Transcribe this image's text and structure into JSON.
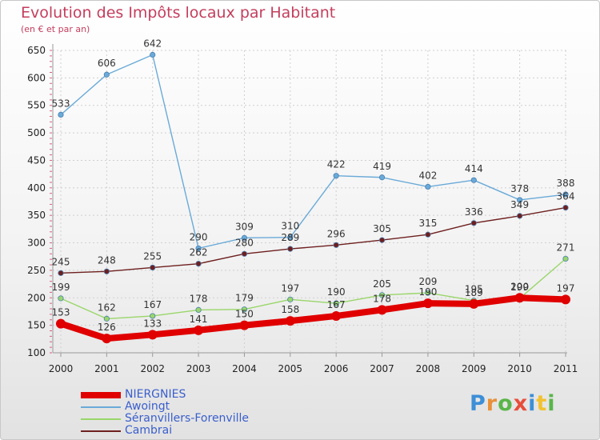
{
  "title": "Evolution des Impôts locaux par Habitant",
  "subtitle": "(en € et par an)",
  "logo": {
    "text": "Proxiti",
    "letter_colors": [
      "#3d8fd6",
      "#e8913a",
      "#5ab54a",
      "#e84d3a",
      "#3d8fd6",
      "#f2c230",
      "#5ab54a"
    ]
  },
  "chart_data": {
    "type": "line",
    "x": [
      "2000",
      "2001",
      "2002",
      "2003",
      "2004",
      "2005",
      "2006",
      "2007",
      "2008",
      "2009",
      "2010",
      "2011"
    ],
    "ylim": [
      100,
      650
    ],
    "yticks": [
      "100",
      "150",
      "200",
      "250",
      "300",
      "350",
      "400",
      "450",
      "500",
      "550",
      "600",
      "650"
    ],
    "grid": true,
    "series": [
      {
        "name": "NIERGNIES",
        "color": "#e00000",
        "values": [
          153,
          126,
          133,
          141,
          150,
          158,
          167,
          178,
          190,
          189,
          200,
          197
        ]
      },
      {
        "name": "Awoingt",
        "color": "#6aaad8",
        "values": [
          533,
          606,
          642,
          290,
          309,
          310,
          422,
          419,
          402,
          414,
          378,
          388
        ]
      },
      {
        "name": "Séranvillers-Forenville",
        "color": "#9ad66a",
        "values": [
          199,
          162,
          167,
          178,
          179,
          197,
          190,
          205,
          209,
          195,
          199,
          271
        ]
      },
      {
        "name": "Cambrai",
        "color": "#6e1f1f",
        "values": [
          245,
          248,
          255,
          262,
          280,
          289,
          296,
          305,
          315,
          336,
          349,
          364
        ]
      }
    ],
    "data_labels": [
      [
        "153",
        "126",
        "133",
        "141",
        "150",
        "158",
        "167",
        "178",
        "190",
        "189",
        "200",
        "197"
      ],
      [
        "533",
        "606",
        "642",
        "290",
        "309",
        "310",
        "422",
        "419",
        "402",
        "414",
        "378",
        "388"
      ],
      [
        "199",
        "162",
        "167",
        "178",
        "179",
        "197",
        "190",
        "205",
        "209",
        "195",
        "199",
        "271"
      ],
      [
        "245",
        "248",
        "255",
        "262",
        "280",
        "289",
        "296",
        "305",
        "315",
        "336",
        "349",
        "364"
      ]
    ]
  }
}
